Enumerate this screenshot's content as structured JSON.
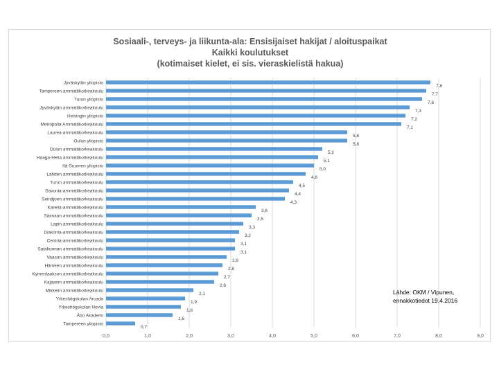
{
  "chart_data": {
    "type": "bar",
    "orientation": "horizontal",
    "title_lines": [
      "Sosiaali-, terveys- ja liikunta-ala: Ensisijaiset hakijat / aloituspaikat",
      "Kaikki koulutukset",
      "(kotimaiset kielet, ei sis. vieraskielistä hakua)"
    ],
    "categories": [
      "Jyväskylän yliopisto",
      "Tampereen ammattikorkeakoulu",
      "Turun yliopisto",
      "Jyväskylän ammattikorkeakoulu",
      "Helsingin yliopisto",
      "Metropolia Ammattikorkeakoulu",
      "Laurea-ammattikorkeakoulu",
      "Oulun yliopisto",
      "Oulun ammattikorkeakoulu",
      "Haaga-Helia ammattikorkeakoulu",
      "Itä-Suomen yliopisto",
      "Lahden ammattikorkeakoulu",
      "Turun ammattikorkeakoulu",
      "Savonia-ammattikorkeakoulu",
      "Seinäjoen ammattikorkeakoulu",
      "Karelia-ammattikorkeakoulu",
      "Saimaan ammattikorkeakoulu",
      "Lapin ammattikorkeakoulu",
      "Diakonia-ammattikorkeakoulu",
      "Centria-ammattikorkeakoulu",
      "Satakunnan ammattikorkeakoulu",
      "Vaasan ammattikorkeakoulu",
      "Hämeen ammattikorkeakoulu",
      "Kymenlaakson ammattikorkeakoulu",
      "Kajaanin ammattikorkeakoulu",
      "Mikkelin ammattikorkeakoulu",
      "Yrkeshögskolan Arcada",
      "Yrkeshögskolan Novia",
      "Åbo Akademi",
      "Tampereen yliopisto"
    ],
    "values": [
      7.8,
      7.7,
      7.6,
      7.3,
      7.2,
      7.1,
      5.8,
      5.8,
      5.2,
      5.1,
      5.0,
      4.8,
      4.5,
      4.4,
      4.3,
      3.6,
      3.5,
      3.3,
      3.2,
      3.1,
      3.1,
      2.9,
      2.8,
      2.7,
      2.6,
      2.1,
      1.9,
      1.8,
      1.6,
      0.7
    ],
    "value_labels": [
      "7,8",
      "7,7",
      "7,6",
      "7,3",
      "7,2",
      "7,1",
      "5,8",
      "5,8",
      "5,2",
      "5,1",
      "5,0",
      "4,8",
      "4,5",
      "4,4",
      "4,3",
      "3,6",
      "3,5",
      "3,3",
      "3,2",
      "3,1",
      "3,1",
      "2,9",
      "2,8",
      "2,7",
      "2,6",
      "2,1",
      "1,9",
      "1,8",
      "1,6",
      "0,7"
    ],
    "xlim": [
      0,
      9
    ],
    "x_ticks": [
      0,
      1,
      2,
      3,
      4,
      5,
      6,
      7,
      8,
      9
    ],
    "x_tick_labels": [
      "0,0",
      "1,0",
      "2,0",
      "3,0",
      "4,0",
      "5,0",
      "6,0",
      "7,0",
      "8,0",
      "9,0"
    ],
    "grid": true,
    "bar_color": "#5b9bd5",
    "grid_color": "#d9d9d9",
    "annotation_lines": [
      "Lähde: OKM / Vipunen,",
      "ennakkotiedot 19.4.2016"
    ]
  }
}
